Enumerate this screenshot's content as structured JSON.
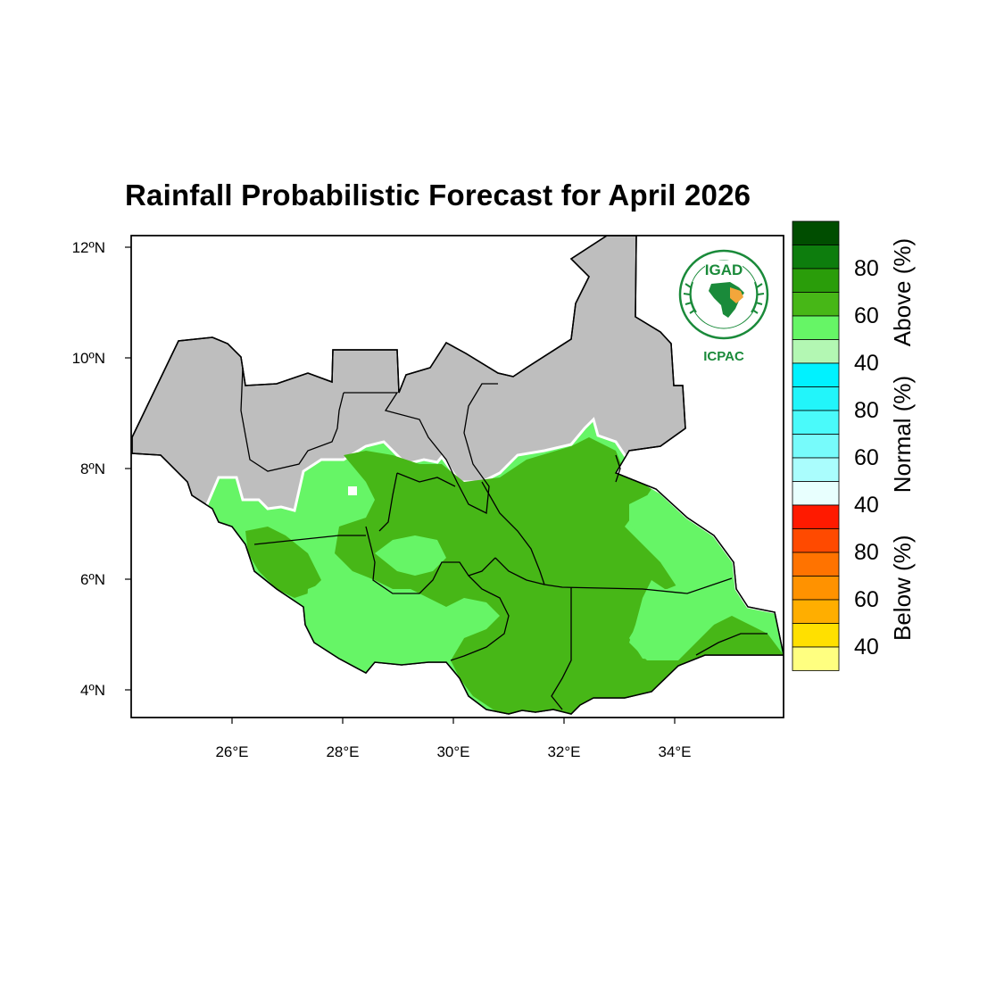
{
  "map": {
    "title": "Rainfall Probabilistic Forecast for April 2026",
    "lat_ticks": [
      "12ºN",
      "10ºN",
      "8ºN",
      "6ºN",
      "4ºN"
    ],
    "lon_ticks": [
      "26°E",
      "28°E",
      "30°E",
      "32°E",
      "34°E"
    ],
    "lon_range": [
      24.2,
      35.9
    ],
    "lat_range": [
      3.5,
      12.2
    ],
    "colors": {
      "no_forecast": "#bebebe",
      "above_40": "#66f566",
      "above_50": "#47b717",
      "border": "#000000",
      "outline": "#ffffff"
    }
  },
  "logo": {
    "acronym": "IGAD",
    "center_name": "ICPAC",
    "ring_text": "INTERGOVERNMENTAL AUTHORITY ON DEVELOPMENT • AUTORITÉ INTERGOUVERNEMENTALE POUR LE DÉVELOPPEMENT"
  },
  "colorbar": {
    "groups": [
      {
        "title": "Above (%)",
        "labels": [
          "80",
          "60",
          "40"
        ],
        "colors": [
          "#004d00",
          "#0d7d0d",
          "#2a9d0a",
          "#47b717",
          "#66f566",
          "#b3f7b3"
        ]
      },
      {
        "title": "Normal (%)",
        "labels": [
          "80",
          "60",
          "40"
        ],
        "colors": [
          "#00f2ff",
          "#22f5fa",
          "#4afafa",
          "#77fbfb",
          "#aafdfd",
          "#e8fffe"
        ]
      },
      {
        "title": "Below (%)",
        "labels": [
          "80",
          "60",
          "40"
        ],
        "colors": [
          "#ff1a00",
          "#ff4a00",
          "#ff7300",
          "#ff9200",
          "#ffae00",
          "#ffe000",
          "#ffff80"
        ]
      }
    ]
  }
}
